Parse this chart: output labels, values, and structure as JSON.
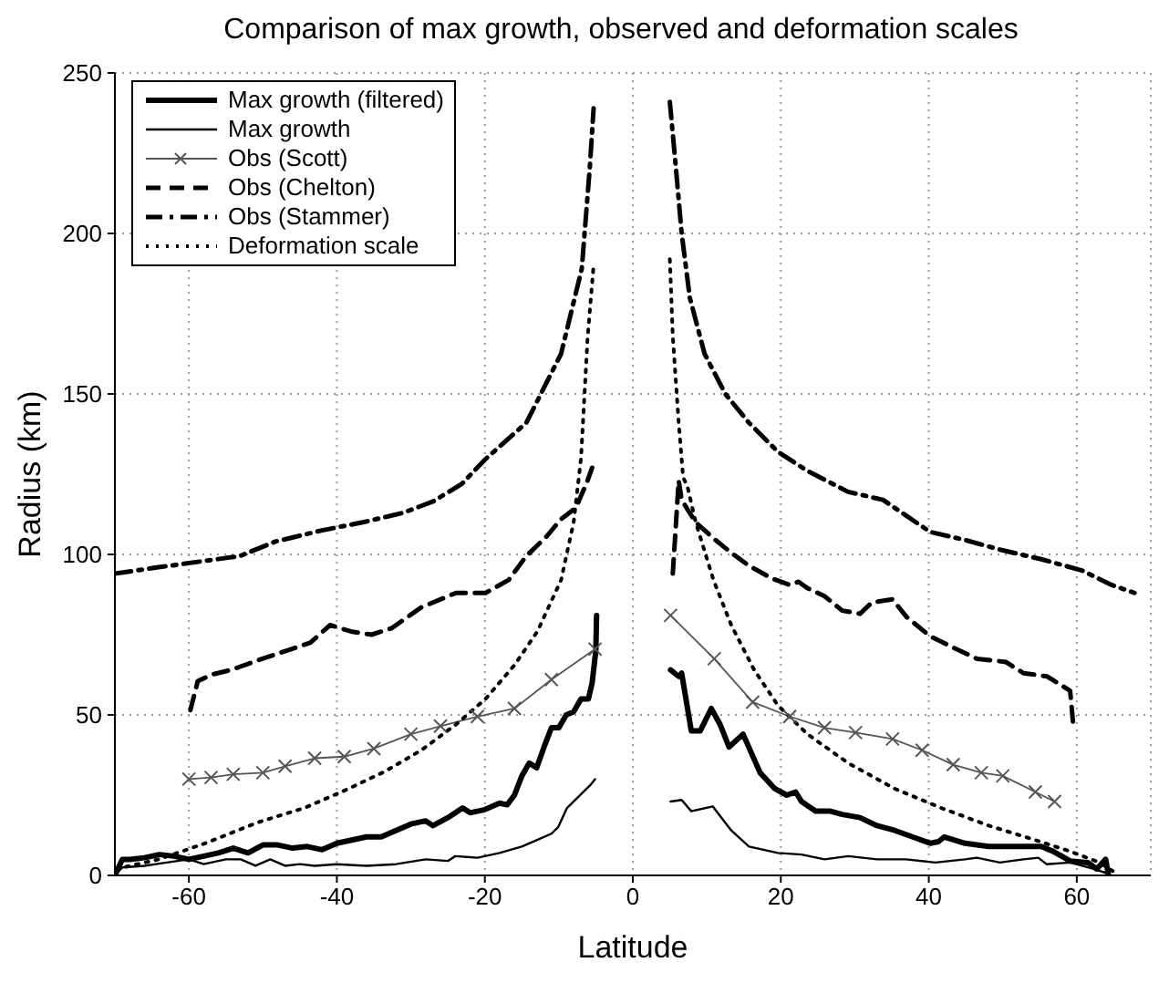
{
  "chart_data": {
    "type": "line",
    "title": "Comparison of max growth, observed and deformation scales",
    "xlabel": "Latitude",
    "ylabel": "Radius (km)",
    "xlim": [
      -70,
      70
    ],
    "ylim": [
      0,
      250
    ],
    "xticks": [
      -60,
      -40,
      -20,
      0,
      20,
      40,
      60
    ],
    "yticks": [
      0,
      50,
      100,
      150,
      200,
      250
    ],
    "grid": true,
    "legend": "top left",
    "marker": "none",
    "series": [
      {
        "name": "Max growth (filtered)",
        "color": "#000000",
        "line_style": "solid",
        "x": [
          -70,
          -69,
          -68,
          -66,
          -64,
          -62,
          -60,
          -58,
          -56,
          -54,
          -52,
          -50,
          -48,
          -46,
          -44,
          -42,
          -40,
          -38,
          -36,
          -34,
          -32,
          -30,
          -28,
          -27,
          -25,
          -23,
          -22,
          -20,
          -18,
          -17,
          -16,
          -15,
          -14,
          -13,
          -12,
          -11,
          -10,
          -9,
          -8,
          -7,
          -6,
          -5.5,
          -5,
          -4.9,
          0,
          5.1,
          6.2,
          6.6,
          7.9,
          9.1,
          10.6,
          11.8,
          13,
          14.9,
          17.2,
          19.2,
          20.8,
          22,
          22.8,
          24.7,
          26.7,
          28.3,
          30.7,
          33,
          35.4,
          37.8,
          40.2,
          41.3,
          42.1,
          44.9,
          48.1,
          50.4,
          52.8,
          55.2,
          56.8,
          59.1,
          61.5,
          62.7,
          63.9,
          64.3
        ],
        "values": [
          0,
          5,
          5,
          5.5,
          6.5,
          6,
          5,
          6,
          7,
          8.5,
          7,
          9.5,
          9.5,
          8.5,
          9,
          8,
          10,
          11,
          12,
          12,
          14,
          16,
          17,
          15.5,
          18,
          21,
          19.5,
          20.5,
          22.5,
          22,
          25,
          31,
          35,
          33.5,
          40,
          46,
          46,
          50,
          51,
          55,
          55,
          60,
          70,
          81,
          null,
          64,
          62,
          63,
          45,
          45,
          52,
          47,
          40,
          44,
          32,
          27,
          25,
          26,
          23,
          20,
          20,
          19,
          18,
          15.5,
          14,
          12,
          10,
          10.5,
          12,
          10,
          9,
          9,
          9,
          9,
          7.5,
          4.5,
          4,
          2,
          5,
          0
        ]
      },
      {
        "name": "Max growth",
        "color": "#000000",
        "line_style": "solid",
        "x": [
          -70,
          -69,
          -66,
          -63,
          -60,
          -58,
          -55,
          -53,
          -51,
          -49,
          -47,
          -45,
          -43,
          -40,
          -36,
          -32,
          -28,
          -25,
          -24,
          -21,
          -18,
          -15,
          -13,
          -11,
          -10.1,
          -8.9,
          -5.8,
          -5.1,
          0,
          5.1,
          6.6,
          7.9,
          10.8,
          13.3,
          15.7,
          19.6,
          22.8,
          25.9,
          29.1,
          33,
          36.9,
          40.9,
          44.9,
          46.5,
          49.6,
          52.8,
          54.8,
          55.9,
          59.1,
          62.3,
          64.3
        ],
        "values": [
          0,
          2.5,
          3,
          4,
          5,
          3.5,
          5,
          5,
          3,
          5,
          3,
          3.5,
          3,
          3.5,
          3,
          3.5,
          5,
          4.5,
          6,
          5.5,
          7,
          9,
          11,
          13,
          15,
          21,
          28,
          30,
          null,
          23,
          23.5,
          20,
          21.5,
          14,
          9,
          7,
          6.5,
          5,
          6,
          5,
          5,
          4,
          5,
          5.5,
          4,
          5,
          5.5,
          3.5,
          4,
          2,
          0.5
        ]
      },
      {
        "name": "Obs (Scott)",
        "color": "#555555",
        "line_style": "solid",
        "marker": "cross",
        "x": [
          -60,
          -57,
          -54,
          -50,
          -47,
          -43,
          -39,
          -35,
          -30,
          -26,
          -21,
          -16,
          -11,
          -5.1,
          0,
          5.1,
          11,
          16.2,
          21.2,
          25.9,
          30.1,
          35.1,
          39.1,
          43.3,
          47.1,
          50,
          54.4,
          57
        ],
        "values": [
          30,
          30.5,
          31.5,
          32,
          34,
          36.5,
          37,
          39.5,
          44,
          46.5,
          49.5,
          52,
          61,
          70.5,
          null,
          81,
          67.5,
          54,
          49.5,
          46,
          44.5,
          42.5,
          39,
          34.5,
          32,
          31,
          26,
          23
        ]
      },
      {
        "name": "Obs (Chelton)",
        "color": "#000000",
        "line_style": "dashed",
        "x": [
          -59.8,
          -58.8,
          -57,
          -54.3,
          -50.7,
          -46.8,
          -43.6,
          -40.9,
          -38.1,
          -35.3,
          -32.6,
          -28.6,
          -23.9,
          -19.9,
          -16.8,
          -14.4,
          -11.7,
          -9.7,
          -7.7,
          -6.2,
          -5.5,
          0,
          5.4,
          6.2,
          6.6,
          7.4,
          8.5,
          10.9,
          13.3,
          15.7,
          18.8,
          21.2,
          22.4,
          23.6,
          25.9,
          28.3,
          30.7,
          32.3,
          35.1,
          37,
          40.2,
          43.3,
          46.5,
          50.4,
          52.8,
          56,
          59.1,
          59.5
        ],
        "values": [
          51.5,
          60.5,
          62.5,
          64,
          67,
          70,
          72.5,
          78,
          76,
          75,
          77,
          83.5,
          88,
          88,
          92,
          99.5,
          105.5,
          111,
          114.5,
          122.5,
          127,
          null,
          94,
          123,
          117,
          114,
          110,
          105,
          100.5,
          96.5,
          92.5,
          90.5,
          91.5,
          89.5,
          87,
          82.5,
          81.5,
          85,
          86,
          80.5,
          74.5,
          71,
          67.5,
          66.5,
          63,
          62,
          57.5,
          47.5
        ]
      },
      {
        "name": "Obs (Stammer)",
        "color": "#000000",
        "line_style": "dashdot",
        "x": [
          -70,
          -64.1,
          -57.8,
          -53.1,
          -48.3,
          -42,
          -36.5,
          -31,
          -27,
          -23.1,
          -20,
          -14.4,
          -9.7,
          -6.9,
          -5.8,
          -5.3,
          0,
          5,
          5.8,
          6.6,
          7.7,
          9.7,
          12.5,
          15.7,
          19.6,
          23.6,
          29.1,
          33.8,
          40.2,
          44.9,
          49.6,
          55.2,
          60.7,
          64.7,
          67.8
        ],
        "values": [
          94,
          96,
          98,
          99.5,
          104,
          107.5,
          110,
          113,
          116.5,
          122,
          129.5,
          141,
          162.5,
          189,
          221,
          239,
          null,
          241,
          221,
          200,
          180,
          162.5,
          150,
          141,
          132,
          126,
          119.5,
          117,
          107,
          104.5,
          101.5,
          98.5,
          95,
          90.5,
          88
        ]
      },
      {
        "name": "Deformation scale",
        "color": "#000000",
        "line_style": "dotted",
        "x": [
          -69.8,
          -64.1,
          -57.8,
          -50.7,
          -44.4,
          -38.9,
          -33.4,
          -28.6,
          -23.9,
          -19.9,
          -16,
          -12.9,
          -9.7,
          -8,
          -7,
          -6.1,
          -5.3,
          0,
          5,
          5.4,
          6.2,
          6.8,
          7.4,
          8.5,
          10.9,
          13.3,
          16.4,
          19.6,
          23.6,
          29.1,
          35.4,
          41.7,
          48.1,
          54.4,
          59.1,
          63.1,
          65.1
        ],
        "values": [
          2,
          5,
          10,
          16.5,
          21,
          26.5,
          32.5,
          39,
          47,
          55,
          65.5,
          76,
          92,
          110,
          130,
          168,
          190,
          null,
          192,
          168,
          141,
          124,
          121,
          110,
          92,
          78,
          64,
          53,
          44,
          35,
          27,
          21,
          15.5,
          11,
          7.5,
          4,
          1
        ]
      }
    ]
  }
}
